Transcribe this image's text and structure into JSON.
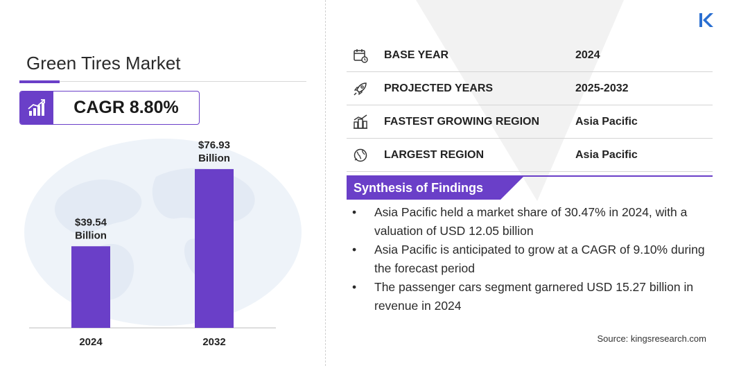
{
  "title": "Green Tires Market",
  "cagr": "CAGR 8.80%",
  "info_rows": [
    {
      "label": "BASE YEAR",
      "value": "2024",
      "icon": "calendar-icon"
    },
    {
      "label": "PROJECTED YEARS",
      "value": "2025-2032",
      "icon": "rocket-icon"
    },
    {
      "label": "FASTEST GROWING REGION",
      "value": "Asia Pacific",
      "icon": "city-growth-icon"
    },
    {
      "label": "LARGEST REGION",
      "value": "Asia Pacific",
      "icon": "globe-icon"
    }
  ],
  "synthesis": {
    "title": "Synthesis of Findings",
    "findings": [
      "Asia Pacific held a market share of 30.47% in 2024, with a valuation of USD 12.05 billion",
      "Asia Pacific is anticipated to grow at a CAGR of 9.10% during the forecast period",
      "The passenger cars segment garnered USD 15.27 billion in revenue in 2024"
    ]
  },
  "source": "Source:  kingsresearch.com",
  "colors": {
    "accent": "#6a3fc8",
    "bar": "#6a3fc8"
  },
  "chart_data": {
    "type": "bar",
    "categories": [
      "2024",
      "2032"
    ],
    "values": [
      39.54,
      76.93
    ],
    "data_labels": [
      [
        "$39.54",
        "Billion"
      ],
      [
        "$76.93",
        "Billion"
      ]
    ],
    "title": "",
    "xlabel": "",
    "ylabel": "",
    "ylim": [
      0,
      90
    ]
  }
}
